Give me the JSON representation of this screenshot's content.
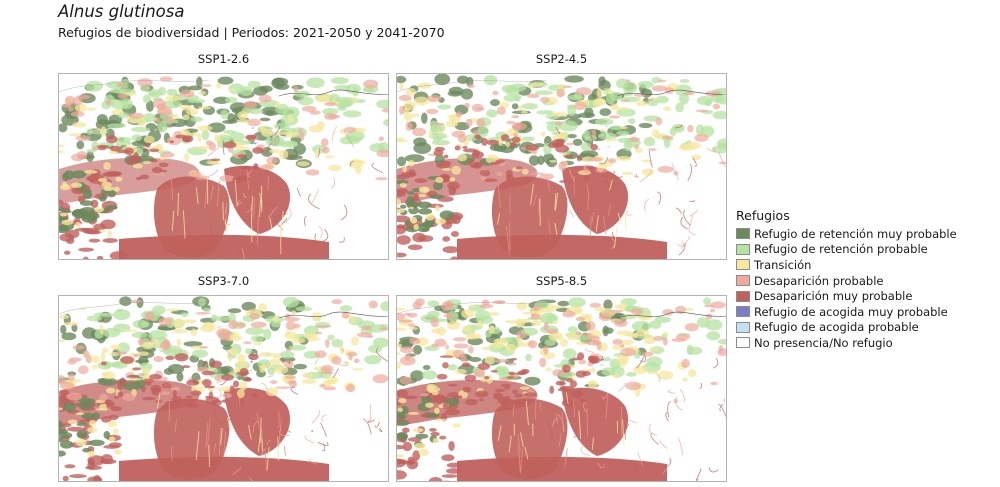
{
  "title": "Alnus glutinosa",
  "subtitle": "Refugios de biodiversidad | Periodos: 2021-2050 y 2041-2070",
  "panels": [
    {
      "label": "SSP1-2.6",
      "scenario": "ssp1"
    },
    {
      "label": "SSP2-4.5",
      "scenario": "ssp2"
    },
    {
      "label": "SSP3-7.0",
      "scenario": "ssp3"
    },
    {
      "label": "SSP5-8.5",
      "scenario": "ssp5"
    }
  ],
  "legend": {
    "title": "Refugios",
    "items": [
      {
        "label": "Refugio de retención muy probable",
        "color": "#6b8a5c"
      },
      {
        "label": "Refugio de retención probable",
        "color": "#b6e3a0"
      },
      {
        "label": "Transición",
        "color": "#f6e79b"
      },
      {
        "label": "Desaparición probable",
        "color": "#f0a99b"
      },
      {
        "label": "Desaparición muy probable",
        "color": "#c0605c"
      },
      {
        "label": "Refugio de acogida muy probable",
        "color": "#7a7fc4"
      },
      {
        "label": "Refugio de acogida probable",
        "color": "#c6dff3"
      },
      {
        "label": "No presencia/No refugio",
        "color": "#ffffff"
      }
    ]
  }
}
